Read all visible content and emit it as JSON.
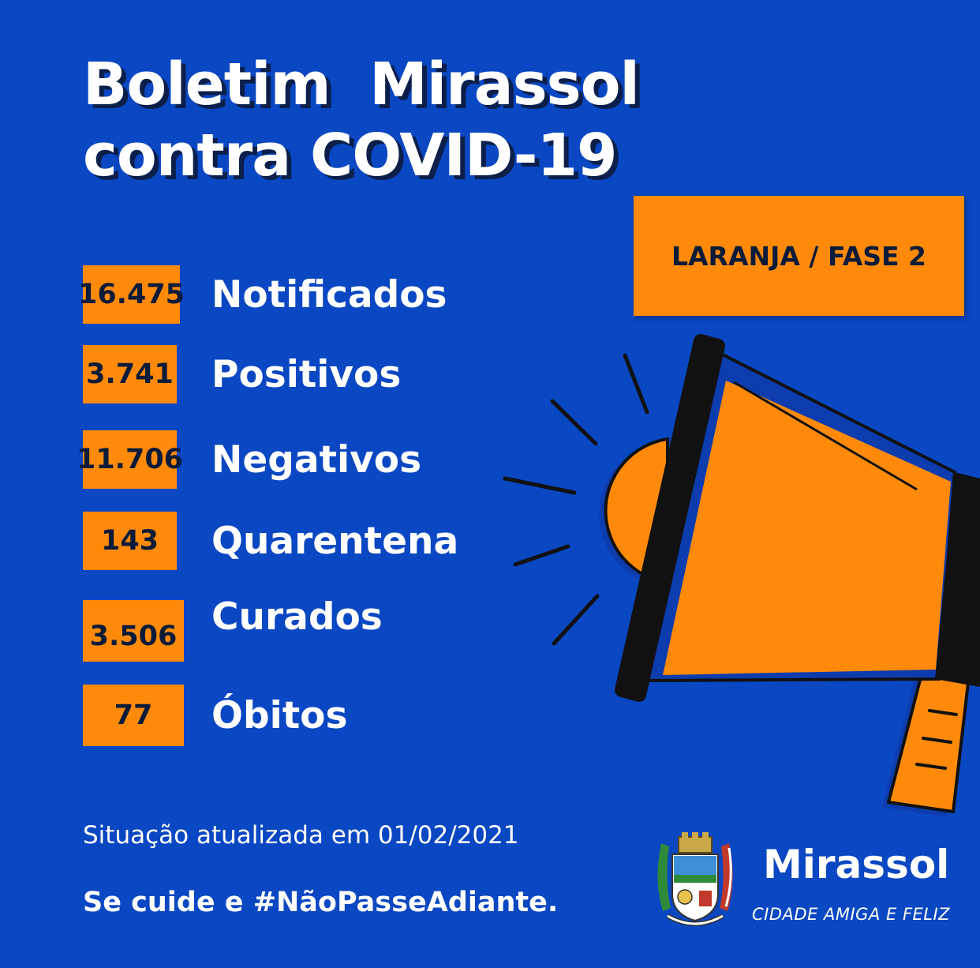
{
  "title": {
    "line1": "Boletim  Mirassol",
    "line2": "contra COVID-19"
  },
  "phase_badge": "LARANJA / FASE 2",
  "stats": [
    {
      "value": "16.475",
      "label": "Notificados"
    },
    {
      "value": "3.741",
      "label": "Positivos"
    },
    {
      "value": "11.706",
      "label": "Negativos"
    },
    {
      "value": "143",
      "label": "Quarentena"
    },
    {
      "value": "3.506",
      "label": "Curados"
    },
    {
      "value": "77",
      "label": "Óbitos"
    }
  ],
  "updated": "Situação atualizada em 01/02/2021",
  "slogan": "Se cuide e #NãoPasseAdiante.",
  "brand": {
    "name": "Mirassol",
    "tagline": "CIDADE AMIGA E FELIZ"
  },
  "colors": {
    "background": "#0a47c2",
    "accent": "#ff8a0a",
    "dark": "#0b1b3a",
    "text": "#ffffff"
  },
  "icons": [
    "megaphone-icon",
    "city-crest-icon"
  ]
}
